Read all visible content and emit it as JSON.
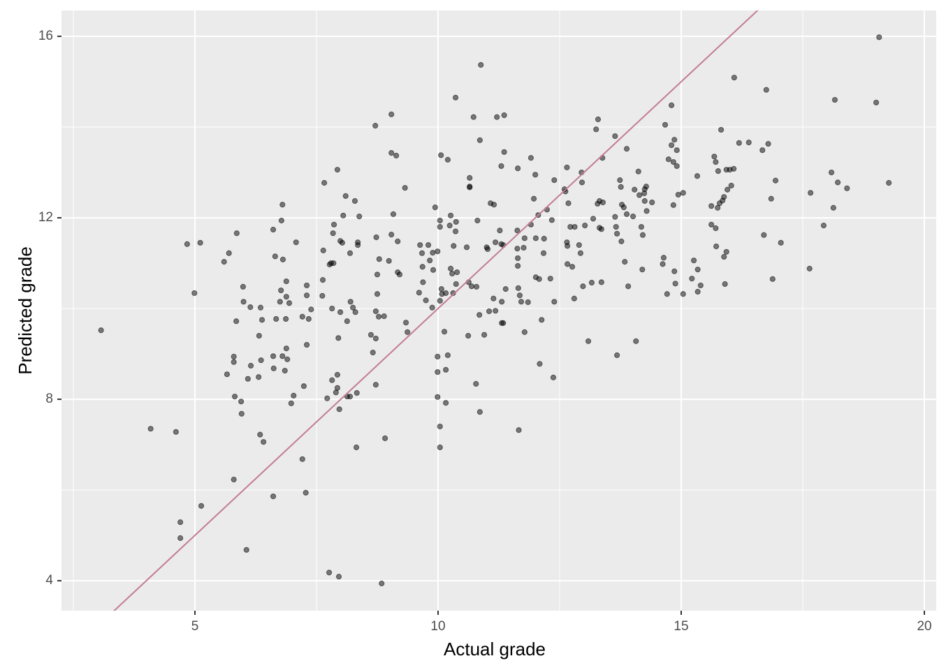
{
  "chart_data": {
    "type": "scatter",
    "x_label": "Actual grade",
    "y_label": "Predicted grade",
    "xlim": [
      2.256,
      20.244
    ],
    "ylim": [
      3.34,
      16.57
    ],
    "xticks": [
      5,
      10,
      15,
      20
    ],
    "yticks": [
      4,
      8,
      12,
      16
    ],
    "grid": true,
    "minor_grid": true,
    "color": "#000000",
    "alpha": 0.5,
    "reference_line": {
      "slope": 1,
      "intercept": 0,
      "color": "#c27c93"
    },
    "x": [
      3.07,
      4.09,
      4.61,
      4.7,
      4.7,
      4.84,
      4.99,
      5.11,
      5.13,
      5.6,
      5.7,
      5.66,
      5.8,
      5.82,
      5.8,
      5.86,
      5.85,
      5.8,
      5.95,
      5.96,
      5.99,
      6.0,
      6.06,
      6.09,
      6.15,
      6.14,
      6.31,
      6.35,
      6.32,
      6.38,
      6.36,
      6.34,
      6.41,
      6.61,
      6.65,
      6.67,
      6.61,
      6.62,
      6.61,
      6.8,
      6.78,
      6.77,
      6.75,
      6.81,
      6.8,
      6.88,
      6.88,
      6.87,
      6.88,
      6.9,
      6.85,
      6.94,
      7.03,
      6.98,
      7.08,
      7.21,
      7.24,
      7.21,
      7.3,
      7.3,
      7.34,
      7.3,
      7.28,
      7.39,
      7.64,
      7.63,
      7.62,
      7.66,
      7.72,
      7.8,
      7.77,
      7.82,
      7.82,
      7.76,
      7.86,
      7.84,
      7.85,
      7.93,
      7.93,
      7.93,
      7.9,
      7.95,
      7.96,
      7.97,
      7.99,
      8.03,
      7.99,
      8.05,
      8.1,
      8.19,
      8.13,
      8.13,
      8.19,
      8.2,
      8.25,
      8.29,
      8.35,
      8.35,
      8.38,
      8.3,
      8.33,
      8.32,
      8.62,
      8.66,
      8.71,
      8.73,
      8.75,
      8.75,
      8.72,
      8.72,
      8.72,
      8.78,
      8.79,
      8.89,
      8.84,
      8.91,
      9.04,
      9.04,
      9.08,
      9.04,
      8.99,
      9.14,
      9.17,
      9.17,
      9.21,
      9.32,
      9.34,
      9.37,
      9.63,
      9.67,
      9.61,
      9.68,
      9.69,
      9.75,
      9.8,
      9.83,
      9.9,
      9.89,
      9.94,
      9.88,
      9.99,
      9.99,
      9.99,
      9.99,
      10.06,
      10.04,
      10.04,
      10.04,
      10.04,
      10.04,
      10.07,
      10.08,
      10.13,
      10.16,
      10.16,
      10.16,
      10.2,
      10.2,
      10.24,
      10.26,
      10.32,
      10.26,
      10.29,
      10.36,
      10.36,
      10.37,
      10.37,
      10.31,
      10.39,
      10.59,
      10.65,
      10.65,
      10.65,
      10.63,
      10.62,
      10.69,
      10.73,
      10.79,
      10.78,
      10.81,
      10.88,
      10.86,
      10.85,
      10.86,
      10.95,
      11.0,
      11.02,
      11.08,
      11.05,
      11.15,
      11.14,
      11.18,
      11.18,
      11.21,
      11.27,
      11.3,
      11.3,
      11.31,
      11.31,
      11.34,
      11.36,
      11.34,
      11.36,
      11.39,
      11.64,
      11.63,
      11.63,
      11.64,
      11.64,
      11.65,
      11.68,
      11.71,
      11.66,
      11.78,
      11.76,
      11.78,
      11.85,
      11.91,
      11.91,
      12.0,
      11.97,
      12.01,
      12.01,
      12.08,
      12.06,
      12.09,
      12.13,
      12.17,
      12.18,
      12.24,
      12.31,
      12.34,
      12.39,
      12.37,
      12.39,
      12.6,
      12.62,
      12.65,
      12.65,
      12.66,
      12.66,
      12.68,
      12.72,
      12.76,
      12.8,
      12.81,
      12.9,
      12.93,
      12.95,
      12.96,
      13.02,
      12.98,
      13.09,
      13.19,
      13.16,
      13.25,
      13.29,
      13.32,
      13.28,
      13.32,
      13.36,
      13.39,
      13.36,
      13.38,
      13.64,
      13.66,
      13.68,
      13.64,
      13.68,
      13.74,
      13.76,
      13.78,
      13.77,
      13.82,
      13.88,
      13.88,
      13.84,
      13.91,
      14.01,
      14.04,
      14.07,
      14.12,
      14.14,
      14.18,
      14.2,
      14.21,
      14.24,
      14.25,
      14.28,
      14.25,
      14.29,
      14.4,
      14.67,
      14.64,
      14.62,
      14.71,
      14.74,
      14.8,
      14.8,
      14.84,
      14.86,
      14.84,
      14.86,
      14.91,
      14.88,
      14.91,
      14.94,
      15.04,
      15.04,
      15.33,
      15.22,
      15.26,
      15.34,
      15.34,
      15.4,
      15.62,
      15.62,
      15.68,
      15.71,
      15.71,
      15.72,
      15.75,
      15.79,
      15.76,
      15.82,
      15.88,
      15.85,
      15.93,
      15.88,
      15.9,
      15.95,
      15.93,
      16.03,
      16.0,
      16.08,
      16.09,
      16.19,
      16.39,
      16.67,
      16.7,
      16.75,
      16.79,
      16.85,
      16.88,
      16.94,
      17.05,
      17.64,
      17.66,
      17.93,
      18.09,
      18.13,
      18.16,
      18.22,
      18.41,
      19.01,
      19.07,
      19.27
    ],
    "y": [
      9.52,
      7.35,
      7.28,
      5.29,
      4.94,
      11.42,
      10.34,
      11.45,
      5.65,
      11.03,
      11.22,
      8.55,
      8.94,
      8.06,
      6.23,
      11.66,
      9.72,
      8.82,
      7.95,
      7.68,
      10.48,
      10.15,
      4.68,
      8.45,
      8.74,
      10.03,
      8.49,
      10.02,
      9.4,
      9.75,
      8.86,
      7.22,
      7.06,
      11.74,
      11.15,
      9.77,
      8.95,
      8.68,
      5.86,
      12.29,
      11.94,
      10.4,
      10.15,
      11.08,
      8.95,
      10.6,
      10.26,
      9.77,
      9.12,
      8.88,
      8.63,
      10.12,
      8.08,
      7.91,
      11.46,
      9.82,
      8.29,
      6.68,
      10.51,
      10.29,
      9.77,
      9.2,
      5.94,
      9.98,
      11.28,
      10.63,
      10.28,
      12.77,
      8.02,
      11.0,
      10.97,
      10.0,
      8.42,
      4.18,
      11.85,
      11.66,
      11.0,
      13.06,
      8.54,
      8.25,
      8.15,
      9.35,
      4.09,
      7.78,
      11.49,
      11.45,
      9.92,
      12.05,
      12.48,
      11.22,
      9.72,
      8.06,
      8.06,
      10.15,
      10.02,
      12.37,
      11.46,
      11.4,
      12.03,
      9.92,
      8.14,
      6.94,
      9.42,
      9.03,
      14.03,
      11.57,
      10.75,
      10.32,
      9.94,
      9.34,
      8.32,
      9.82,
      11.09,
      9.83,
      3.94,
      7.14,
      14.28,
      13.43,
      12.08,
      11.63,
      11.05,
      13.37,
      11.48,
      10.8,
      10.75,
      12.66,
      9.69,
      9.48,
      11.4,
      11.22,
      10.35,
      10.92,
      10.58,
      10.18,
      11.4,
      11.06,
      10.85,
      11.23,
      12.23,
      10.02,
      11.26,
      8.94,
      8.6,
      8.05,
      13.38,
      11.94,
      11.8,
      10.17,
      7.4,
      6.94,
      10.43,
      10.32,
      9.49,
      7.92,
      10.34,
      8.65,
      8.97,
      13.28,
      11.83,
      12.05,
      11.38,
      10.88,
      10.77,
      11.7,
      14.65,
      11.91,
      10.54,
      10.34,
      10.8,
      11.35,
      12.69,
      12.67,
      12.88,
      10.58,
      9.4,
      10.49,
      14.22,
      10.48,
      8.34,
      11.94,
      15.37,
      13.71,
      9.86,
      7.72,
      9.42,
      11.35,
      11.31,
      12.32,
      9.94,
      12.29,
      10.22,
      9.95,
      11.46,
      14.22,
      11.72,
      11.42,
      13.14,
      10.15,
      9.68,
      9.68,
      14.26,
      11.4,
      13.45,
      10.43,
      13.09,
      11.72,
      11.32,
      11.11,
      10.94,
      10.45,
      10.29,
      10.15,
      7.32,
      11.55,
      11.34,
      9.48,
      10.14,
      13.32,
      11.85,
      12.95,
      12.42,
      11.55,
      10.69,
      10.65,
      12.06,
      8.78,
      9.75,
      11.22,
      11.54,
      12.18,
      10.66,
      11.95,
      10.15,
      8.48,
      12.83,
      12.63,
      12.58,
      13.11,
      11.46,
      11.38,
      10.98,
      12.32,
      11.8,
      10.92,
      10.22,
      11.8,
      11.4,
      11.22,
      13.0,
      12.78,
      11.83,
      10.49,
      9.28,
      11.98,
      10.57,
      13.95,
      14.17,
      12.37,
      12.31,
      11.78,
      11.75,
      12.34,
      10.58,
      13.32,
      12.02,
      11.8,
      11.65,
      13.8,
      8.97,
      12.83,
      12.68,
      12.29,
      11.48,
      12.23,
      13.52,
      12.08,
      11.03,
      10.49,
      12.03,
      12.62,
      9.28,
      13.02,
      12.5,
      11.8,
      10.86,
      11.62,
      12.54,
      12.63,
      12.69,
      12.37,
      12.15,
      12.34,
      14.05,
      11.12,
      10.98,
      10.32,
      13.29,
      14.48,
      13.6,
      12.28,
      13.72,
      13.23,
      10.82,
      13.14,
      10.55,
      13.49,
      12.51,
      10.32,
      12.55,
      12.92,
      10.66,
      11.06,
      10.86,
      10.37,
      10.51,
      12.26,
      11.85,
      13.35,
      13.23,
      11.77,
      11.37,
      12.22,
      12.32,
      13.03,
      13.94,
      12.46,
      12.38,
      11.25,
      11.14,
      10.54,
      12.62,
      13.06,
      12.71,
      13.06,
      13.08,
      15.09,
      13.65,
      13.66,
      13.49,
      11.62,
      14.82,
      13.63,
      12.42,
      10.65,
      12.82,
      11.45,
      10.88,
      12.55,
      11.83,
      13.0,
      12.22,
      14.6,
      12.78,
      12.65,
      14.54,
      15.98,
      12.77
    ]
  }
}
